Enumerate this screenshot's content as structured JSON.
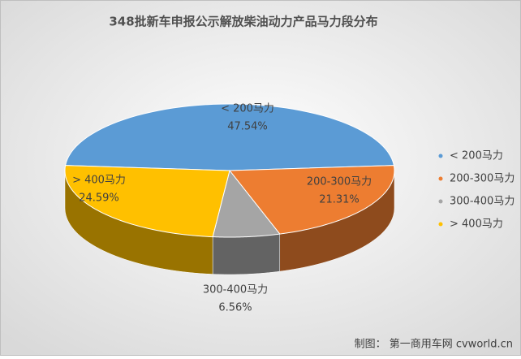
{
  "chart_data": {
    "type": "pie",
    "title": "348批新车申报公示解放柴油动力产品马力段分布",
    "categories": [
      "< 200马力",
      "200-300马力",
      "300-400马力",
      "> 400马力"
    ],
    "values": [
      47.54,
      21.31,
      6.56,
      24.59
    ],
    "value_labels": [
      "47.54%",
      "21.31%",
      "6.56%",
      "24.59%"
    ],
    "colors": [
      "#5b9bd5",
      "#ed7d31",
      "#a5a5a5",
      "#ffc000"
    ],
    "legend": "right",
    "source": "制图：  第一商用车网 cvworld.cn"
  }
}
